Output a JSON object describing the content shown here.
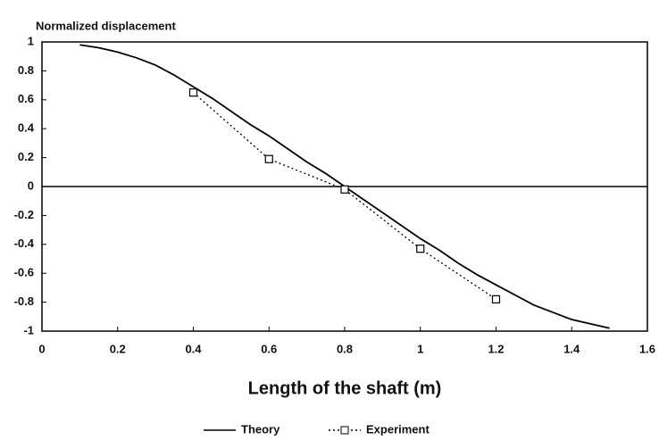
{
  "chart_data": {
    "type": "line",
    "y_axis_label": "Normalized displacement",
    "x_axis_label": "Length of the shaft (m)",
    "series": [
      {
        "name": "Theory",
        "color": "#000000",
        "style": "solid",
        "marker": "none",
        "x": [
          0.1,
          0.15,
          0.2,
          0.25,
          0.3,
          0.35,
          0.4,
          0.45,
          0.5,
          0.55,
          0.6,
          0.65,
          0.7,
          0.75,
          0.8,
          0.85,
          0.9,
          0.95,
          1.0,
          1.05,
          1.1,
          1.15,
          1.2,
          1.25,
          1.3,
          1.35,
          1.4,
          1.45,
          1.5
        ],
        "values": [
          0.98,
          0.96,
          0.93,
          0.89,
          0.84,
          0.77,
          0.69,
          0.61,
          0.52,
          0.43,
          0.35,
          0.26,
          0.17,
          0.09,
          0,
          -0.09,
          -0.18,
          -0.27,
          -0.36,
          -0.44,
          -0.53,
          -0.61,
          -0.68,
          -0.75,
          -0.82,
          -0.87,
          -0.92,
          -0.95,
          -0.98
        ]
      },
      {
        "name": "Experiment",
        "color": "#000000",
        "style": "dotted",
        "marker": "square",
        "x": [
          0.4,
          0.6,
          0.8,
          1.0,
          1.2
        ],
        "values": [
          0.65,
          0.19,
          -0.02,
          -0.43,
          -0.78
        ]
      }
    ],
    "xlim": [
      0,
      1.6
    ],
    "xticks": [
      0,
      0.2,
      0.4,
      0.6,
      0.8,
      1,
      1.2,
      1.4,
      1.6
    ],
    "ylim": [
      -1,
      1
    ],
    "yticks": [
      -1,
      -0.8,
      -0.6,
      -0.4,
      -0.2,
      0,
      0.2,
      0.4,
      0.6,
      0.8,
      1
    ],
    "zero_line": true,
    "legend": "bottom"
  }
}
